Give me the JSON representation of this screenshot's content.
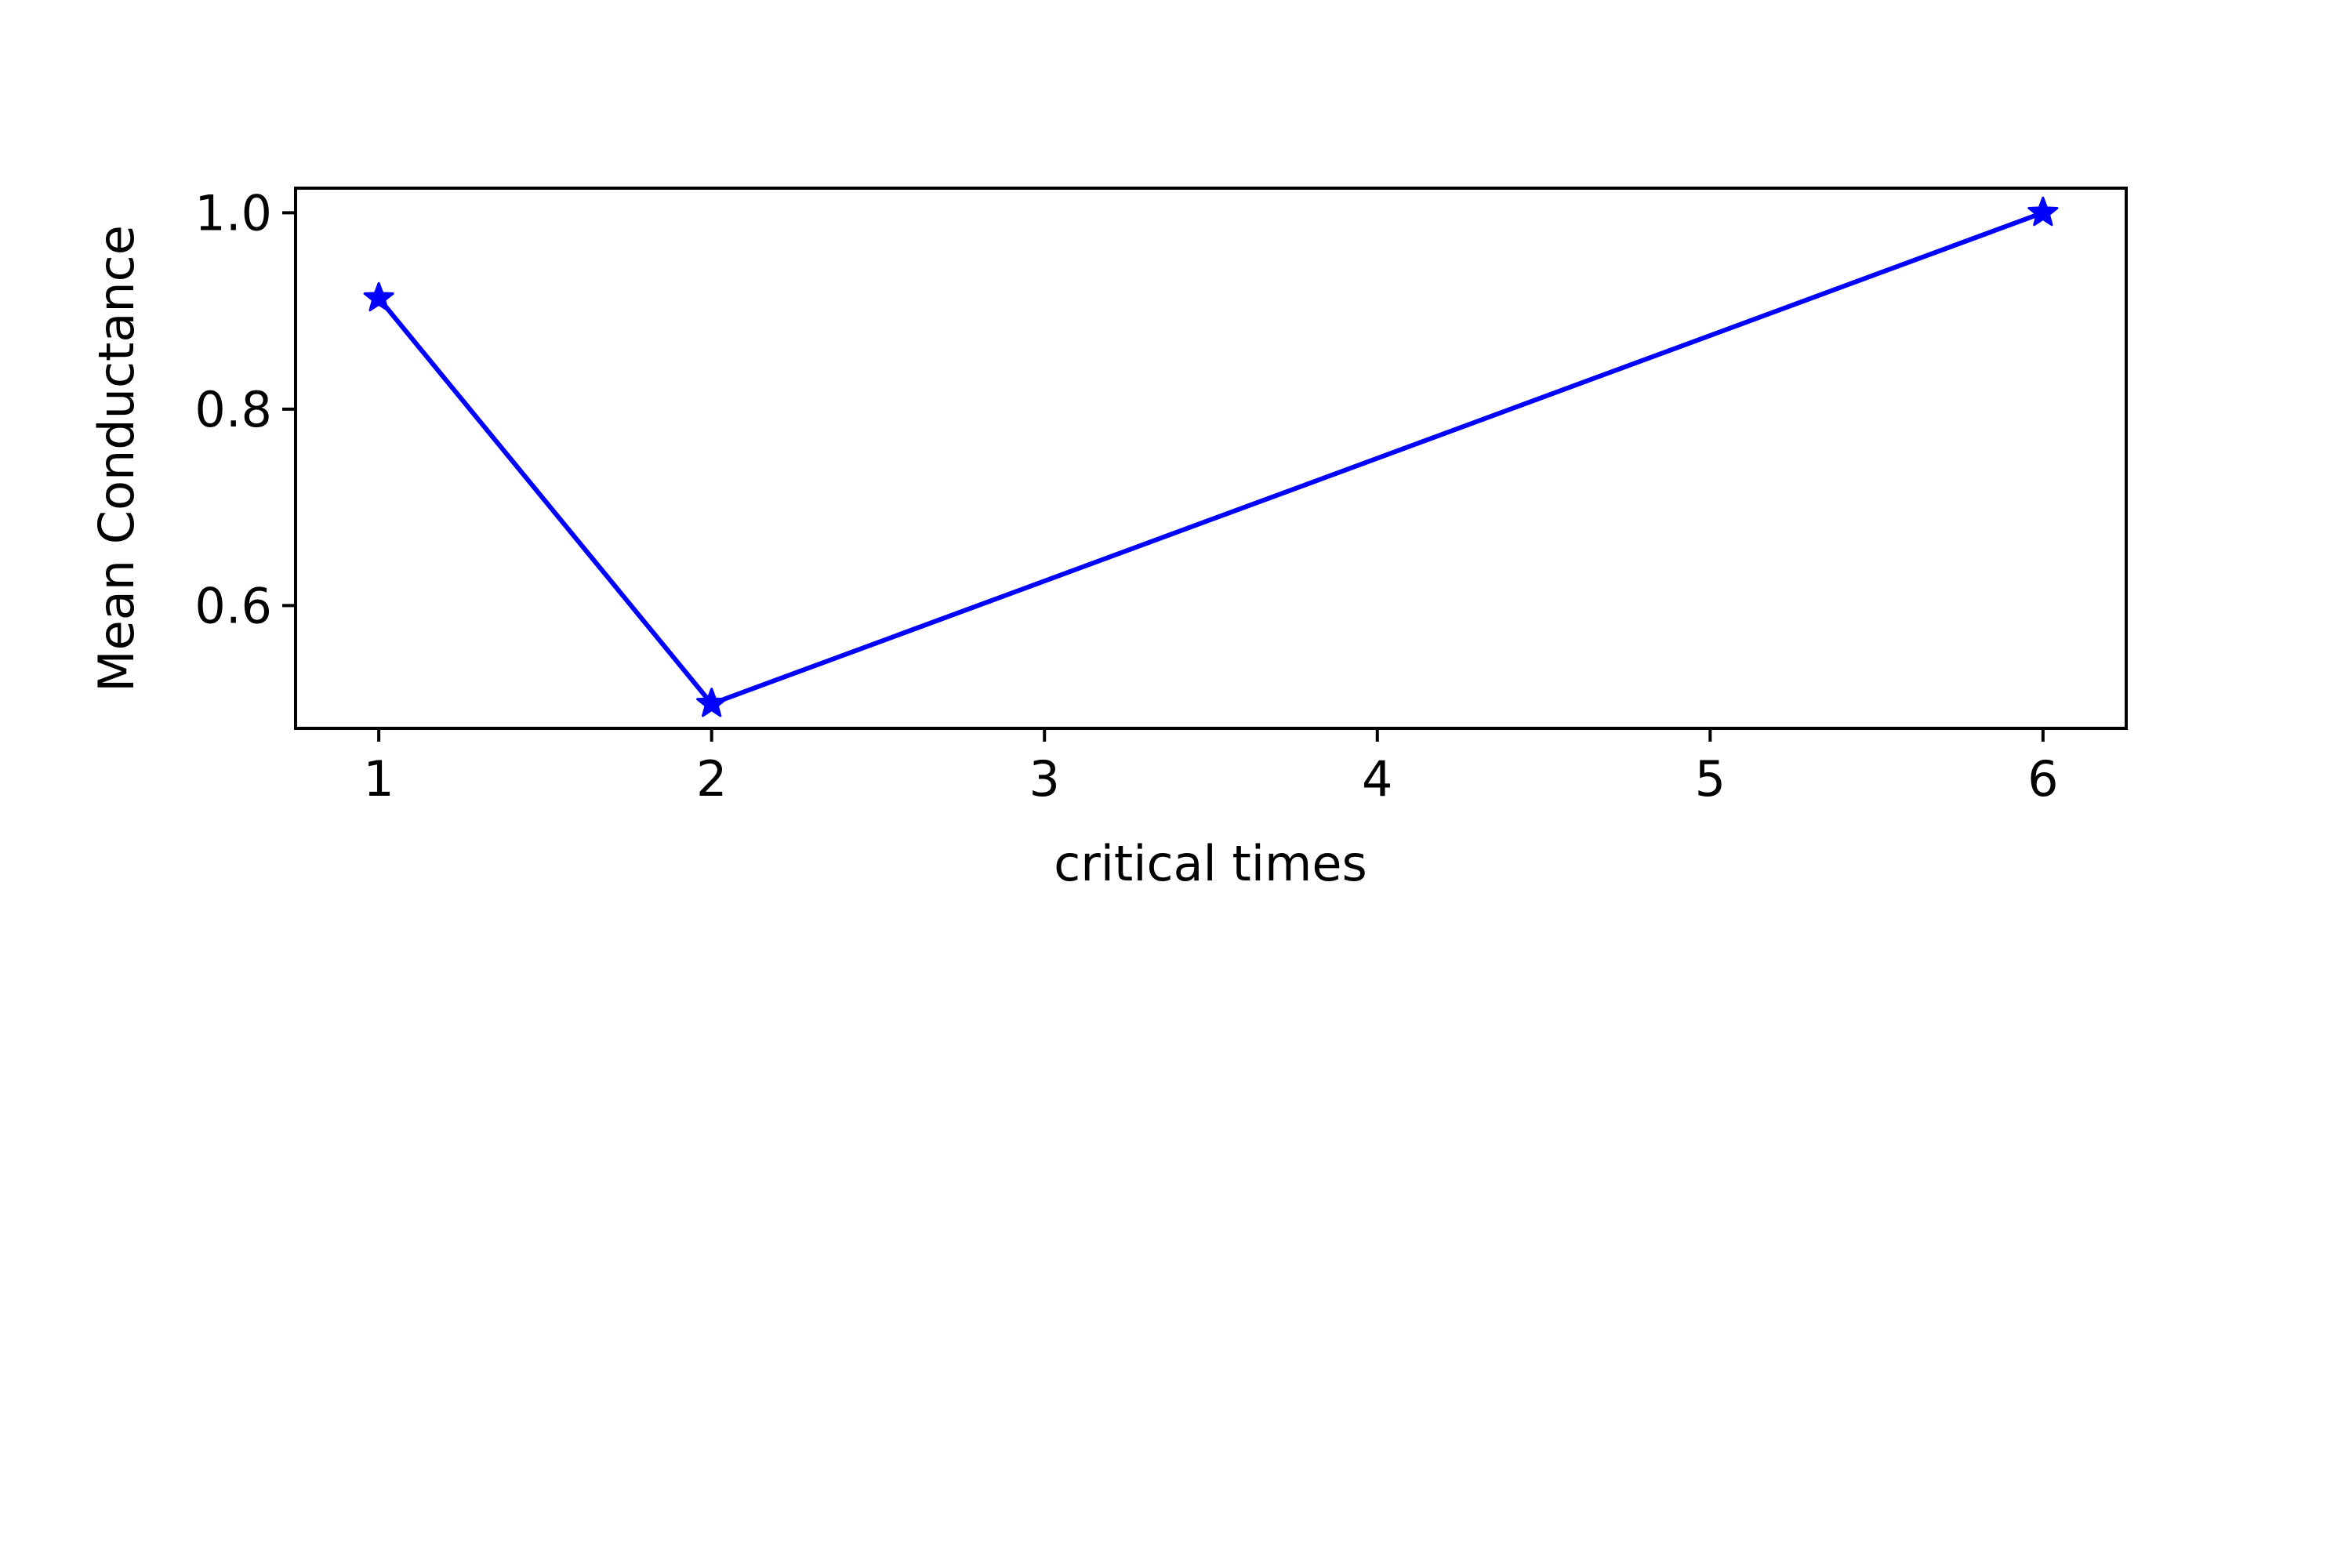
{
  "chart_data": {
    "type": "line",
    "title": "",
    "xlabel": "critical times",
    "ylabel": "Mean Conductance",
    "xlim": [
      0.75,
      6.25
    ],
    "ylim": [
      0.475,
      1.025
    ],
    "xticks": [
      1,
      2,
      3,
      4,
      5,
      6
    ],
    "xtick_labels": [
      "1",
      "2",
      "3",
      "4",
      "5",
      "6"
    ],
    "yticks": [
      0.6,
      0.8,
      1.0
    ],
    "ytick_labels": [
      "0.6",
      "0.8",
      "1.0"
    ],
    "grid": false,
    "series": [
      {
        "x": [
          1,
          2,
          6
        ],
        "y": [
          0.913,
          0.5,
          1.0
        ],
        "color": "#0000ff",
        "marker": "star"
      }
    ]
  }
}
